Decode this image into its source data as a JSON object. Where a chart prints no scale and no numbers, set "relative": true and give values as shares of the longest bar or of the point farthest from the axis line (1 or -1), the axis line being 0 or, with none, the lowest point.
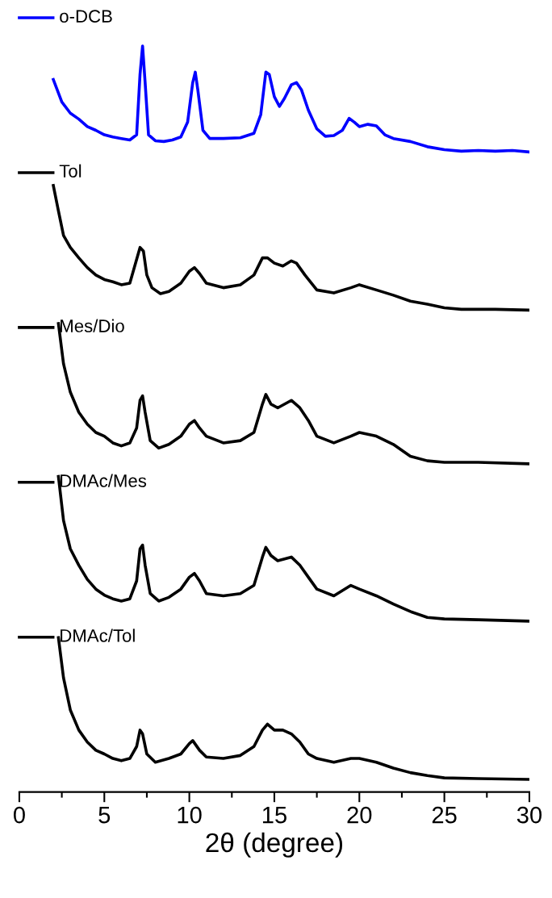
{
  "chart_data": {
    "type": "line",
    "xlabel": "2θ (degree)",
    "relative": true,
    "xlim": [
      0,
      30
    ],
    "xticks": [
      0,
      5,
      10,
      15,
      20,
      25,
      30
    ],
    "tick_labels": "x",
    "grid": false,
    "legend": "left",
    "marker": "none",
    "line_style": "solid",
    "series": [
      {
        "name": "o-DCB",
        "color": "#0000ff",
        "x": [
          2.0,
          2.5,
          3,
          3.5,
          4,
          4.5,
          5,
          5.5,
          6,
          6.5,
          6.9,
          7.1,
          7.25,
          7.4,
          7.6,
          8,
          8.5,
          9,
          9.5,
          9.9,
          10.2,
          10.35,
          10.5,
          10.8,
          11.2,
          12,
          13,
          13.8,
          14.2,
          14.5,
          14.7,
          15,
          15.3,
          15.6,
          16,
          16.3,
          16.6,
          17,
          17.5,
          18,
          18.5,
          19,
          19.4,
          19.7,
          20,
          20.5,
          21,
          21.5,
          22,
          23,
          24,
          25,
          26,
          27,
          28,
          29,
          30
        ],
        "values": [
          0.955,
          0.925,
          0.91,
          0.902,
          0.892,
          0.887,
          0.881,
          0.878,
          0.876,
          0.874,
          0.881,
          0.962,
          1.0,
          0.951,
          0.881,
          0.873,
          0.872,
          0.874,
          0.878,
          0.898,
          0.951,
          0.965,
          0.941,
          0.887,
          0.876,
          0.876,
          0.877,
          0.883,
          0.908,
          0.965,
          0.962,
          0.932,
          0.919,
          0.93,
          0.948,
          0.951,
          0.941,
          0.914,
          0.889,
          0.879,
          0.88,
          0.887,
          0.903,
          0.898,
          0.892,
          0.895,
          0.893,
          0.881,
          0.876,
          0.872,
          0.865,
          0.861,
          0.859,
          0.86,
          0.859,
          0.86,
          0.858
        ]
      },
      {
        "name": "Tol",
        "color": "#000000",
        "x": [
          2,
          2.3,
          2.6,
          3,
          3.5,
          4,
          4.5,
          5,
          5.5,
          6,
          6.5,
          6.9,
          7.1,
          7.3,
          7.5,
          7.8,
          8.3,
          8.8,
          9.5,
          10,
          10.3,
          10.6,
          11,
          12,
          13,
          13.8,
          14.3,
          14.6,
          15,
          15.5,
          16,
          16.3,
          16.8,
          17.5,
          18.5,
          19.5,
          20,
          21,
          22,
          23,
          24,
          25,
          26,
          28,
          30
        ],
        "values": [
          0.813,
          0.779,
          0.746,
          0.73,
          0.716,
          0.703,
          0.693,
          0.687,
          0.684,
          0.68,
          0.682,
          0.714,
          0.73,
          0.725,
          0.693,
          0.676,
          0.668,
          0.671,
          0.682,
          0.698,
          0.703,
          0.695,
          0.682,
          0.676,
          0.68,
          0.693,
          0.716,
          0.716,
          0.709,
          0.705,
          0.712,
          0.709,
          0.693,
          0.673,
          0.669,
          0.676,
          0.68,
          0.673,
          0.666,
          0.658,
          0.654,
          0.649,
          0.647,
          0.647,
          0.646
        ]
      },
      {
        "name": "Mes/Dio",
        "color": "#000000",
        "x": [
          2.3,
          2.6,
          3,
          3.5,
          4,
          4.5,
          5,
          5.5,
          6,
          6.5,
          6.9,
          7.1,
          7.25,
          7.4,
          7.7,
          8.2,
          8.8,
          9.5,
          10,
          10.3,
          10.6,
          11,
          12,
          13,
          13.8,
          14.3,
          14.5,
          14.8,
          15.2,
          16,
          16.5,
          17,
          17.5,
          18.5,
          19.5,
          20,
          21,
          22,
          23,
          24,
          25,
          27,
          30
        ],
        "values": [
          0.628,
          0.574,
          0.536,
          0.509,
          0.493,
          0.482,
          0.477,
          0.468,
          0.464,
          0.468,
          0.488,
          0.525,
          0.531,
          0.509,
          0.471,
          0.461,
          0.466,
          0.477,
          0.493,
          0.498,
          0.488,
          0.477,
          0.468,
          0.471,
          0.482,
          0.52,
          0.533,
          0.52,
          0.515,
          0.525,
          0.515,
          0.498,
          0.477,
          0.468,
          0.477,
          0.482,
          0.477,
          0.466,
          0.45,
          0.444,
          0.442,
          0.442,
          0.44
        ]
      },
      {
        "name": "DMAc/Mes",
        "color": "#000000",
        "x": [
          2.3,
          2.6,
          3,
          3.5,
          4,
          4.5,
          5,
          5.5,
          6,
          6.5,
          6.9,
          7.1,
          7.25,
          7.4,
          7.7,
          8.2,
          8.8,
          9.5,
          10,
          10.3,
          10.6,
          11,
          12,
          13,
          13.8,
          14.3,
          14.5,
          14.8,
          15.2,
          16,
          16.5,
          17,
          17.5,
          18.5,
          19.5,
          20,
          21,
          22,
          23,
          24,
          25,
          27,
          30
        ],
        "values": [
          0.423,
          0.364,
          0.326,
          0.304,
          0.285,
          0.272,
          0.264,
          0.259,
          0.256,
          0.259,
          0.283,
          0.326,
          0.331,
          0.304,
          0.266,
          0.256,
          0.261,
          0.272,
          0.288,
          0.293,
          0.283,
          0.266,
          0.263,
          0.266,
          0.277,
          0.315,
          0.328,
          0.317,
          0.31,
          0.315,
          0.304,
          0.288,
          0.272,
          0.263,
          0.277,
          0.272,
          0.263,
          0.252,
          0.242,
          0.234,
          0.232,
          0.231,
          0.229
        ]
      },
      {
        "name": "DMAc/Tol",
        "color": "#000000",
        "x": [
          2.3,
          2.6,
          3,
          3.5,
          4,
          4.5,
          5,
          5.5,
          6,
          6.5,
          6.9,
          7.1,
          7.25,
          7.5,
          8,
          8.8,
          9.5,
          10,
          10.2,
          10.6,
          11,
          12,
          13,
          13.8,
          14.3,
          14.6,
          15,
          15.5,
          16,
          16.5,
          17,
          17.5,
          18.5,
          19.5,
          20,
          21,
          22,
          23,
          24,
          25,
          27,
          30
        ],
        "values": [
          0.207,
          0.153,
          0.11,
          0.083,
          0.067,
          0.056,
          0.051,
          0.045,
          0.042,
          0.045,
          0.061,
          0.083,
          0.078,
          0.051,
          0.04,
          0.045,
          0.051,
          0.065,
          0.069,
          0.056,
          0.047,
          0.045,
          0.049,
          0.061,
          0.083,
          0.091,
          0.083,
          0.083,
          0.078,
          0.067,
          0.051,
          0.045,
          0.04,
          0.045,
          0.045,
          0.04,
          0.032,
          0.026,
          0.022,
          0.019,
          0.018,
          0.017
        ]
      }
    ]
  }
}
